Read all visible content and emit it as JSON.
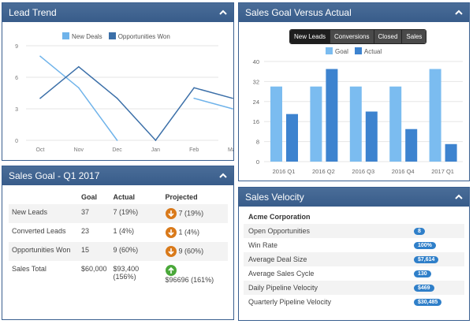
{
  "lead_trend": {
    "title": "Lead Trend",
    "legend": [
      "New Deals",
      "Opportunities Won"
    ],
    "colors": {
      "new_deals": "#6fb3ea",
      "opps_won": "#3b6fa8"
    },
    "chart_data": {
      "type": "line",
      "x": [
        "Oct",
        "Nov",
        "Dec",
        "Jan",
        "Feb",
        "Mar"
      ],
      "series": [
        {
          "name": "New Deals",
          "values": [
            8,
            5,
            0,
            null,
            4,
            3
          ]
        },
        {
          "name": "Opportunities Won",
          "values": [
            4,
            7,
            4,
            0,
            5,
            4
          ]
        }
      ],
      "yticks": [
        "9",
        "6",
        "3",
        "0"
      ],
      "ylim": [
        0,
        9
      ]
    }
  },
  "sales_goal": {
    "title": "Sales Goal Versus Actual",
    "tabs": [
      "New Leads",
      "Conversions",
      "Closed",
      "Sales"
    ],
    "active_tab": "New Leads",
    "legend": [
      "Goal",
      "Actual"
    ],
    "colors": {
      "goal": "#7bbcf0",
      "actual": "#3d83cf"
    },
    "chart_data": {
      "type": "bar",
      "categories": [
        "2016 Q1",
        "2016 Q2",
        "2016 Q3",
        "2016 Q4",
        "2017 Q1"
      ],
      "series": [
        {
          "name": "Goal",
          "values": [
            30,
            30,
            30,
            30,
            37
          ]
        },
        {
          "name": "Actual",
          "values": [
            19,
            37,
            20,
            13,
            7
          ]
        }
      ],
      "yticks": [
        "40",
        "32",
        "24",
        "16",
        "8",
        "0"
      ],
      "ylim": [
        0,
        40
      ]
    }
  },
  "q1": {
    "title": "Sales Goal - Q1 2017",
    "headers": [
      "",
      "Goal",
      "Actual",
      "Projected"
    ],
    "rows": [
      {
        "label": "New Leads",
        "goal": "37",
        "actual": "7 (19%)",
        "projected": "7 (19%)",
        "dir": "down"
      },
      {
        "label": "Converted Leads",
        "goal": "23",
        "actual": "1 (4%)",
        "projected": "1 (4%)",
        "dir": "down"
      },
      {
        "label": "Opportunities Won",
        "goal": "15",
        "actual": "9 (60%)",
        "projected": "9 (60%)",
        "dir": "down"
      },
      {
        "label": "Sales Total",
        "goal": "$60,000",
        "actual": "$93,400 (156%)",
        "projected": "$96696 (161%)",
        "dir": "up"
      }
    ]
  },
  "velocity": {
    "title": "Sales Velocity",
    "company": "Acme Corporation",
    "rows": [
      {
        "label": "Open Opportunities",
        "value": "8"
      },
      {
        "label": "Win Rate",
        "value": "100%"
      },
      {
        "label": "Average Deal Size",
        "value": "$7,614"
      },
      {
        "label": "Average Sales Cycle",
        "value": "130"
      },
      {
        "label": "Daily Pipeline Velocity",
        "value": "$469"
      },
      {
        "label": "Quarterly Pipeline Velocity",
        "value": "$30,485"
      }
    ]
  }
}
